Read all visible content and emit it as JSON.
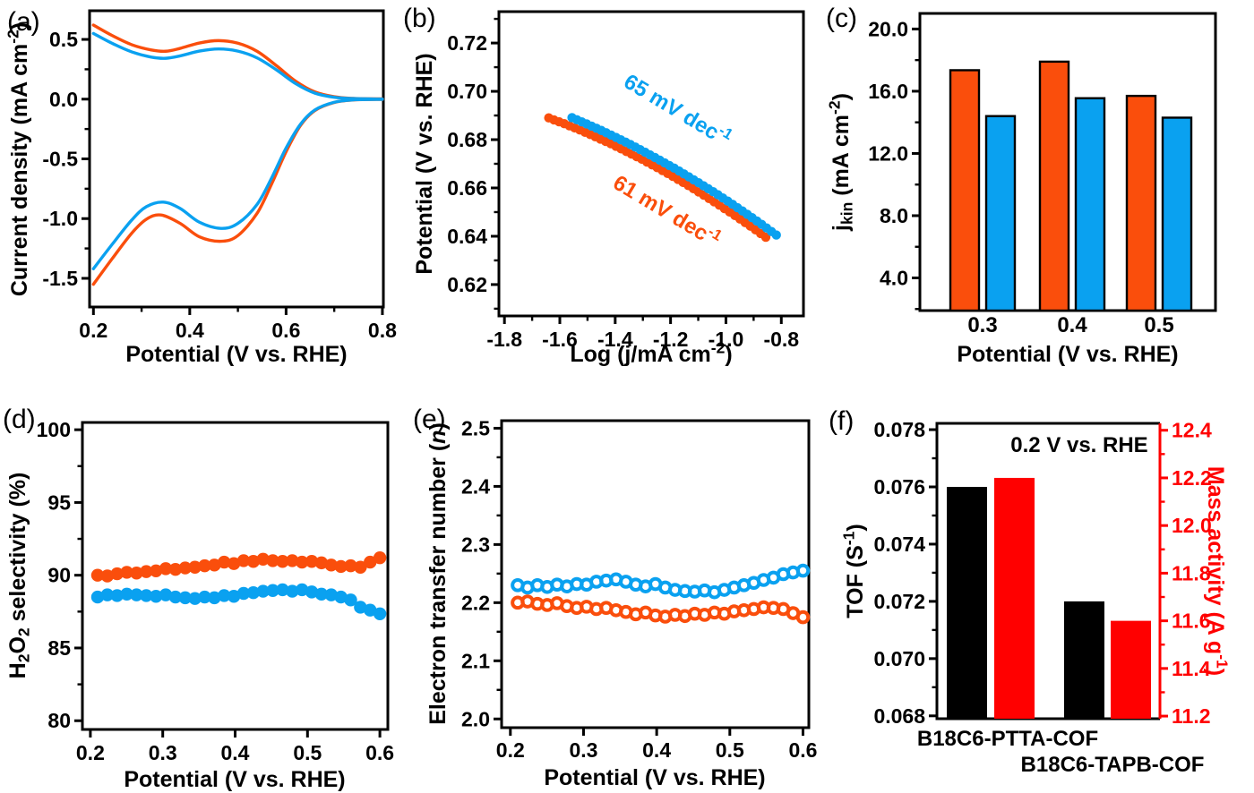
{
  "colors": {
    "orange": "#FA4E0C",
    "blue": "#0AA1F0",
    "black": "#000000",
    "red": "#FF0000",
    "frame": "#000000",
    "background": "#ffffff"
  },
  "chart_data": [
    {
      "id": "a",
      "label": "(a)",
      "type": "line",
      "xlabel": "Potential (V vs. RHE)",
      "ylabel": "Current density (mA cm^{-2})",
      "xlim": [
        0.192,
        0.802
      ],
      "ylim": [
        -1.74,
        0.74
      ],
      "xticks": {
        "values": [
          0.2,
          0.4,
          0.6,
          0.8
        ],
        "labels": [
          "0.2",
          "0.4",
          "0.6",
          "0.8"
        ],
        "minor": [
          0.3,
          0.5,
          0.7
        ]
      },
      "yticks": {
        "values": [
          0.5,
          0.0,
          -0.5,
          -1.0,
          -1.5
        ],
        "labels": [
          "0.5",
          "0.0",
          "-0.5",
          "-1.0",
          "-1.5"
        ],
        "minor": [
          0.25,
          -0.25,
          -0.75,
          -1.25
        ]
      },
      "series": [
        {
          "name": "orange-anodic",
          "color": "orange",
          "points": [
            [
              0.2,
              0.62
            ],
            [
              0.24,
              0.53
            ],
            [
              0.28,
              0.455
            ],
            [
              0.32,
              0.412
            ],
            [
              0.35,
              0.401
            ],
            [
              0.38,
              0.425
            ],
            [
              0.42,
              0.47
            ],
            [
              0.46,
              0.49
            ],
            [
              0.5,
              0.468
            ],
            [
              0.54,
              0.4
            ],
            [
              0.58,
              0.28
            ],
            [
              0.62,
              0.15
            ],
            [
              0.66,
              0.06
            ],
            [
              0.7,
              0.02
            ],
            [
              0.74,
              0.006
            ],
            [
              0.8,
              0.002
            ]
          ]
        },
        {
          "name": "blue-anodic",
          "color": "blue",
          "points": [
            [
              0.2,
              0.55
            ],
            [
              0.24,
              0.465
            ],
            [
              0.28,
              0.395
            ],
            [
              0.32,
              0.352
            ],
            [
              0.35,
              0.342
            ],
            [
              0.38,
              0.362
            ],
            [
              0.42,
              0.402
            ],
            [
              0.46,
              0.42
            ],
            [
              0.5,
              0.402
            ],
            [
              0.54,
              0.345
            ],
            [
              0.58,
              0.245
            ],
            [
              0.62,
              0.13
            ],
            [
              0.66,
              0.05
            ],
            [
              0.7,
              0.016
            ],
            [
              0.74,
              0.005
            ],
            [
              0.8,
              0.001
            ]
          ]
        },
        {
          "name": "orange-cathodic",
          "color": "orange",
          "points": [
            [
              0.2,
              -1.55
            ],
            [
              0.24,
              -1.33
            ],
            [
              0.28,
              -1.12
            ],
            [
              0.31,
              -1.005
            ],
            [
              0.34,
              -0.97
            ],
            [
              0.38,
              -1.04
            ],
            [
              0.42,
              -1.152
            ],
            [
              0.465,
              -1.19
            ],
            [
              0.5,
              -1.142
            ],
            [
              0.54,
              -0.955
            ],
            [
              0.57,
              -0.71
            ],
            [
              0.6,
              -0.44
            ],
            [
              0.63,
              -0.22
            ],
            [
              0.66,
              -0.095
            ],
            [
              0.7,
              -0.028
            ],
            [
              0.74,
              -0.007
            ],
            [
              0.8,
              -0.002
            ]
          ]
        },
        {
          "name": "blue-cathodic",
          "color": "blue",
          "points": [
            [
              0.2,
              -1.42
            ],
            [
              0.24,
              -1.21
            ],
            [
              0.28,
              -1.01
            ],
            [
              0.31,
              -0.9
            ],
            [
              0.345,
              -0.862
            ],
            [
              0.38,
              -0.915
            ],
            [
              0.42,
              -1.03
            ],
            [
              0.465,
              -1.082
            ],
            [
              0.5,
              -1.04
            ],
            [
              0.54,
              -0.88
            ],
            [
              0.57,
              -0.66
            ],
            [
              0.6,
              -0.41
            ],
            [
              0.63,
              -0.21
            ],
            [
              0.66,
              -0.09
            ],
            [
              0.7,
              -0.026
            ],
            [
              0.74,
              -0.006
            ],
            [
              0.8,
              -0.002
            ]
          ]
        }
      ]
    },
    {
      "id": "b",
      "label": "(b)",
      "type": "tafel",
      "xlabel": "Log (j/mA cm^{-2})",
      "ylabel": "Potential (V vs. RHE)",
      "xlim": [
        -1.82,
        -0.72
      ],
      "ylim": [
        0.607,
        0.733
      ],
      "xticks": {
        "values": [
          -1.8,
          -1.6,
          -1.4,
          -1.2,
          -1.0,
          -0.8
        ],
        "labels": [
          "-1.8",
          "-1.6",
          "-1.4",
          "-1.2",
          "-1.0",
          "-0.8"
        ],
        "minor": [
          -1.7,
          -1.5,
          -1.3,
          -1.1,
          -0.9
        ]
      },
      "yticks": {
        "values": [
          0.62,
          0.64,
          0.66,
          0.68,
          0.7,
          0.72
        ],
        "labels": [
          "0.62",
          "0.64",
          "0.66",
          "0.68",
          "0.70",
          "0.72"
        ],
        "minor": [
          0.61,
          0.63,
          0.65,
          0.67,
          0.69,
          0.71,
          0.73
        ]
      },
      "series": [
        {
          "name": "orange-tafel",
          "color": "orange",
          "points": [
            [
              -1.64,
              0.689
            ],
            [
              -1.584,
              0.6866
            ],
            [
              -1.528,
              0.684
            ],
            [
              -1.472,
              0.6812
            ],
            [
              -1.416,
              0.6783
            ],
            [
              -1.36,
              0.6751
            ],
            [
              -1.304,
              0.6719
            ],
            [
              -1.248,
              0.6684
            ],
            [
              -1.192,
              0.6648
            ],
            [
              -1.136,
              0.661
            ],
            [
              -1.08,
              0.657
            ],
            [
              -1.024,
              0.6529
            ],
            [
              -0.968,
              0.6486
            ],
            [
              -0.912,
              0.6442
            ],
            [
              -0.856,
              0.6396
            ]
          ]
        },
        {
          "name": "blue-tafel",
          "color": "blue",
          "points": [
            [
              -1.556,
              0.6891
            ],
            [
              -1.503,
              0.6865
            ],
            [
              -1.45,
              0.6838
            ],
            [
              -1.397,
              0.6809
            ],
            [
              -1.345,
              0.678
            ],
            [
              -1.292,
              0.6748
            ],
            [
              -1.239,
              0.6715
            ],
            [
              -1.187,
              0.6682
            ],
            [
              -1.134,
              0.6646
            ],
            [
              -1.081,
              0.6609
            ],
            [
              -1.029,
              0.6572
            ],
            [
              -0.976,
              0.6532
            ],
            [
              -0.923,
              0.6491
            ],
            [
              -0.871,
              0.6449
            ],
            [
              -0.818,
              0.6405
            ]
          ]
        }
      ],
      "annotations": [
        {
          "text": "65 mV dec^{-1}",
          "color": "blue"
        },
        {
          "text": "61 mV dec^{-1}",
          "color": "orange"
        }
      ]
    },
    {
      "id": "c",
      "label": "(c)",
      "type": "bars",
      "xlabel": "Potential (V vs. RHE)",
      "ylabel": "j_{kin} (mA cm^{-2})",
      "ylim": [
        1.9,
        21.0
      ],
      "categories": [
        "0.3",
        "0.4",
        "0.5"
      ],
      "yticks": {
        "values": [
          4,
          8,
          12,
          16,
          20
        ],
        "labels": [
          "4.0",
          "8.0",
          "12.0",
          "16.0",
          "20.0"
        ],
        "minor": [
          2,
          6,
          10,
          14,
          18
        ]
      },
      "series": [
        {
          "name": "orange-bars",
          "color": "orange",
          "values": [
            17.35,
            17.9,
            15.7
          ]
        },
        {
          "name": "blue-bars",
          "color": "blue",
          "values": [
            14.4,
            15.55,
            14.3
          ]
        }
      ]
    },
    {
      "id": "d",
      "label": "(d)",
      "type": "scatter",
      "xlabel": "Potential (V vs. RHE)",
      "ylabel": "H_{2}O_{2} selectivity (%)",
      "xlim": [
        0.189,
        0.611
      ],
      "ylim": [
        79.4,
        100.5
      ],
      "xticks": {
        "values": [
          0.2,
          0.3,
          0.4,
          0.5,
          0.6
        ],
        "labels": [
          "0.2",
          "0.3",
          "0.4",
          "0.5",
          "0.6"
        ],
        "minor": []
      },
      "yticks": {
        "values": [
          80,
          85,
          90,
          95,
          100
        ],
        "labels": [
          "80",
          "85",
          "90",
          "95",
          "100"
        ],
        "minor": [
          82.5,
          87.5,
          92.5,
          97.5
        ]
      },
      "x_range": {
        "start": 0.21,
        "end": 0.6,
        "n": 30
      },
      "series": [
        {
          "name": "orange-selectivity",
          "color": "orange",
          "values": [
            90.0,
            89.95,
            90.1,
            90.2,
            90.15,
            90.25,
            90.3,
            90.45,
            90.4,
            90.5,
            90.55,
            90.65,
            90.7,
            90.9,
            90.8,
            91.0,
            90.95,
            91.1,
            91.0,
            90.95,
            91.0,
            90.9,
            90.95,
            90.85,
            90.7,
            90.6,
            90.65,
            90.55,
            90.9,
            91.2
          ]
        },
        {
          "name": "blue-selectivity",
          "color": "blue",
          "values": [
            88.5,
            88.65,
            88.6,
            88.7,
            88.65,
            88.6,
            88.55,
            88.65,
            88.5,
            88.45,
            88.4,
            88.5,
            88.45,
            88.6,
            88.55,
            88.75,
            88.8,
            88.9,
            88.95,
            89.0,
            88.9,
            89.0,
            88.85,
            88.7,
            88.65,
            88.5,
            88.3,
            87.8,
            87.6,
            87.35
          ]
        }
      ]
    },
    {
      "id": "e",
      "label": "(e)",
      "type": "scatter-open",
      "xlabel": "Potential (V vs. RHE)",
      "ylabel": "Electron transfer number (*n*)",
      "xlim": [
        0.188,
        0.608
      ],
      "ylim": [
        1.985,
        2.513
      ],
      "xticks": {
        "values": [
          0.2,
          0.3,
          0.4,
          0.5,
          0.6
        ],
        "labels": [
          "0.2",
          "0.3",
          "0.4",
          "0.5",
          "0.6"
        ],
        "minor": []
      },
      "yticks": {
        "values": [
          2.0,
          2.1,
          2.2,
          2.3,
          2.4,
          2.5
        ],
        "labels": [
          "2.0",
          "2.1",
          "2.2",
          "2.3",
          "2.4",
          "2.5"
        ],
        "minor": [
          2.05,
          2.15,
          2.25,
          2.35,
          2.45
        ]
      },
      "x_range": {
        "start": 0.21,
        "end": 0.6,
        "n": 30
      },
      "series": [
        {
          "name": "blue-electron-number",
          "color": "blue",
          "values": [
            2.23,
            2.226,
            2.23,
            2.227,
            2.231,
            2.228,
            2.232,
            2.231,
            2.236,
            2.238,
            2.24,
            2.236,
            2.231,
            2.228,
            2.232,
            2.226,
            2.222,
            2.22,
            2.219,
            2.221,
            2.218,
            2.222,
            2.226,
            2.23,
            2.234,
            2.239,
            2.243,
            2.249,
            2.252,
            2.255
          ]
        },
        {
          "name": "orange-electron-number",
          "color": "orange",
          "values": [
            2.2,
            2.202,
            2.198,
            2.196,
            2.199,
            2.194,
            2.191,
            2.193,
            2.189,
            2.191,
            2.187,
            2.184,
            2.18,
            2.183,
            2.178,
            2.176,
            2.179,
            2.177,
            2.181,
            2.179,
            2.183,
            2.181,
            2.185,
            2.187,
            2.189,
            2.192,
            2.191,
            2.189,
            2.182,
            2.175
          ]
        }
      ]
    },
    {
      "id": "f",
      "label": "(f)",
      "type": "dualbar",
      "ylabel": "TOF (S^{-1})",
      "y2label": "Mass activity (A g^{-1})",
      "annotation": "0.2 V vs. RHE",
      "ylim": [
        0.0679,
        0.07822
      ],
      "y2lim": [
        11.189,
        12.429
      ],
      "categories": [
        "B18C6-PTTA-COF",
        "B18C6-TAPB-COF"
      ],
      "yticks": {
        "values": [
          0.068,
          0.07,
          0.072,
          0.074,
          0.076,
          0.078
        ],
        "labels": [
          "0.068",
          "0.070",
          "0.072",
          "0.074",
          "0.076",
          "0.078"
        ],
        "minor": [
          0.069,
          0.071,
          0.073,
          0.075,
          0.077
        ]
      },
      "y2ticks": {
        "values": [
          11.2,
          11.4,
          11.6,
          11.8,
          12.0,
          12.2,
          12.4
        ],
        "labels": [
          "11.2",
          "11.4",
          "11.6",
          "11.8",
          "12.0",
          "12.2",
          "12.4"
        ],
        "minor": [
          11.3,
          11.5,
          11.7,
          11.9,
          12.1,
          12.3
        ]
      },
      "series": [
        {
          "name": "TOF",
          "color": "black",
          "axis": "y",
          "values": [
            0.076,
            0.072
          ]
        },
        {
          "name": "Mass activity",
          "color": "red",
          "axis": "y2",
          "values": [
            12.2,
            11.6
          ]
        }
      ]
    }
  ]
}
